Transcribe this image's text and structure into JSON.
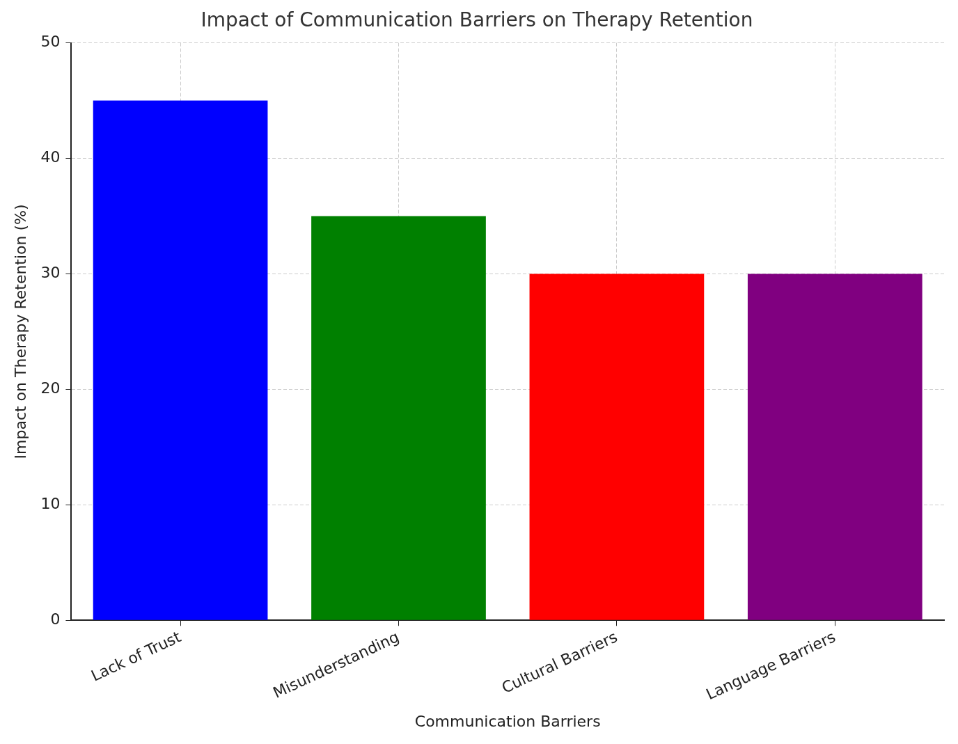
{
  "chart_data": {
    "type": "bar",
    "title": "Impact of Communication Barriers on Therapy Retention",
    "x_label": "Communication Barriers",
    "y_label": "Impact on Therapy Retention (%)",
    "categories": [
      "Lack of Trust",
      "Misunderstanding",
      "Cultural Barriers",
      "Language Barriers"
    ],
    "values": [
      45,
      35,
      30,
      30
    ],
    "colors": [
      "#0000ff",
      "#008000",
      "#ff0000",
      "#800080"
    ],
    "ylim": [
      0,
      50
    ],
    "yticks": [
      0,
      10,
      20,
      30,
      40,
      50
    ],
    "grid": true
  }
}
